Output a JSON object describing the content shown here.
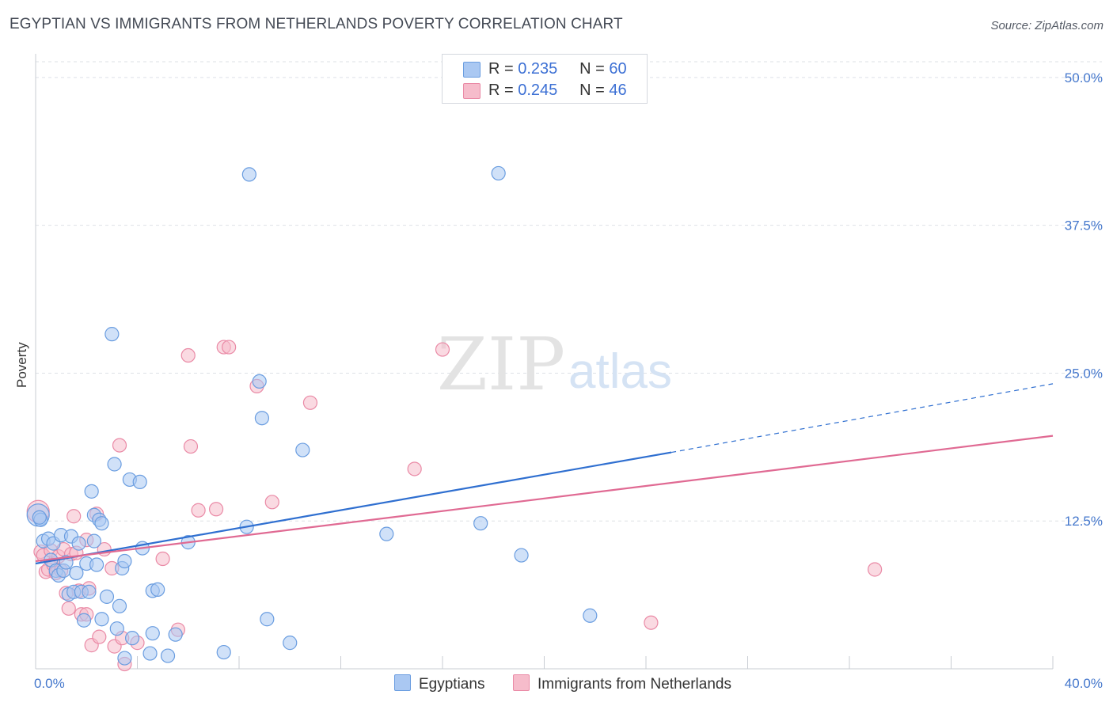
{
  "title": "EGYPTIAN VS IMMIGRANTS FROM NETHERLANDS POVERTY CORRELATION CHART",
  "source": "Source: ZipAtlas.com",
  "watermark": {
    "zip": "ZIP",
    "atlas": "atlas"
  },
  "colors": {
    "blue_fill": "#aac8f2",
    "blue_stroke": "#6a9de0",
    "blue_line": "#2f6fd0",
    "pink_fill": "#f6bccb",
    "pink_stroke": "#ea8aa6",
    "pink_line": "#e06a93",
    "grid": "#dde1e6",
    "axis_text": "#4477cc"
  },
  "legend": {
    "rows": [
      {
        "r_label": "R =",
        "r_value": "0.235",
        "n_label": "N =",
        "n_value": "60"
      },
      {
        "r_label": "R =",
        "r_value": "0.245",
        "n_label": "N =",
        "n_value": "46"
      }
    ]
  },
  "bottom_legend": {
    "series1": "Egyptians",
    "series2": "Immigrants from Netherlands"
  },
  "chart_data": {
    "type": "scatter",
    "xlabel": "",
    "ylabel": "Poverty",
    "xlim": [
      0,
      40
    ],
    "ylim": [
      0,
      52
    ],
    "x_tick_labels": [
      "0.0%",
      "40.0%"
    ],
    "y_ticks": [
      12.5,
      25.0,
      37.5,
      50.0
    ],
    "y_tick_labels": [
      "12.5%",
      "25.0%",
      "37.5%",
      "50.0%"
    ],
    "series": [
      {
        "name": "Egyptians",
        "r": 0.235,
        "n": 60,
        "trend": {
          "x0": 0,
          "y0": 8.9,
          "x1": 25.0,
          "y1": 18.3,
          "dash_to_x": 40,
          "dash_to_y": 24.1
        },
        "points": [
          [
            0.1,
            13.0
          ],
          [
            0.2,
            12.6
          ],
          [
            0.3,
            10.8
          ],
          [
            0.5,
            11.0
          ],
          [
            0.6,
            9.2
          ],
          [
            0.7,
            10.6
          ],
          [
            0.8,
            8.3
          ],
          [
            0.9,
            7.9
          ],
          [
            1.0,
            11.3
          ],
          [
            1.1,
            8.3
          ],
          [
            1.2,
            9.0
          ],
          [
            1.3,
            6.3
          ],
          [
            1.4,
            11.2
          ],
          [
            1.5,
            6.5
          ],
          [
            1.6,
            8.1
          ],
          [
            1.7,
            10.6
          ],
          [
            1.8,
            6.5
          ],
          [
            1.9,
            4.1
          ],
          [
            2.0,
            8.9
          ],
          [
            2.1,
            6.5
          ],
          [
            2.2,
            15.0
          ],
          [
            2.3,
            13.0
          ],
          [
            2.3,
            10.8
          ],
          [
            2.4,
            8.8
          ],
          [
            2.5,
            12.6
          ],
          [
            2.6,
            12.3
          ],
          [
            2.6,
            4.2
          ],
          [
            2.8,
            6.1
          ],
          [
            3.0,
            28.3
          ],
          [
            3.1,
            17.3
          ],
          [
            3.2,
            3.4
          ],
          [
            3.3,
            5.3
          ],
          [
            3.4,
            8.5
          ],
          [
            3.5,
            0.9
          ],
          [
            3.5,
            9.1
          ],
          [
            3.7,
            16.0
          ],
          [
            3.8,
            2.6
          ],
          [
            4.1,
            15.8
          ],
          [
            4.2,
            10.2
          ],
          [
            4.5,
            1.3
          ],
          [
            4.6,
            3.0
          ],
          [
            4.6,
            6.6
          ],
          [
            4.8,
            6.7
          ],
          [
            5.2,
            1.1
          ],
          [
            5.5,
            2.9
          ],
          [
            6.0,
            10.7
          ],
          [
            7.4,
            1.4
          ],
          [
            8.3,
            12.0
          ],
          [
            8.4,
            41.8
          ],
          [
            8.8,
            24.3
          ],
          [
            8.9,
            21.2
          ],
          [
            9.1,
            4.2
          ],
          [
            10.0,
            2.2
          ],
          [
            10.5,
            18.5
          ],
          [
            13.8,
            11.4
          ],
          [
            17.5,
            12.3
          ],
          [
            18.2,
            41.9
          ],
          [
            19.1,
            9.6
          ],
          [
            21.8,
            4.5
          ],
          [
            0.15,
            12.8
          ]
        ]
      },
      {
        "name": "Immigrants from Netherlands",
        "r": 0.245,
        "n": 46,
        "trend": {
          "x0": 0,
          "y0": 9.1,
          "x1": 40,
          "y1": 19.7
        },
        "points": [
          [
            0.1,
            13.3
          ],
          [
            0.2,
            9.9
          ],
          [
            0.3,
            9.6
          ],
          [
            0.4,
            8.2
          ],
          [
            0.5,
            8.4
          ],
          [
            0.6,
            10.0
          ],
          [
            0.7,
            8.8
          ],
          [
            0.8,
            8.1
          ],
          [
            0.9,
            9.5
          ],
          [
            1.0,
            8.3
          ],
          [
            1.1,
            10.1
          ],
          [
            1.2,
            6.4
          ],
          [
            1.3,
            5.1
          ],
          [
            1.4,
            9.7
          ],
          [
            1.5,
            12.9
          ],
          [
            1.6,
            9.8
          ],
          [
            1.7,
            6.6
          ],
          [
            1.8,
            4.6
          ],
          [
            2.0,
            10.9
          ],
          [
            2.0,
            4.6
          ],
          [
            2.1,
            6.8
          ],
          [
            2.2,
            2.0
          ],
          [
            2.4,
            13.1
          ],
          [
            2.5,
            2.7
          ],
          [
            2.7,
            10.1
          ],
          [
            3.0,
            8.5
          ],
          [
            3.1,
            1.9
          ],
          [
            3.3,
            18.9
          ],
          [
            3.4,
            2.6
          ],
          [
            3.5,
            0.4
          ],
          [
            4.0,
            2.2
          ],
          [
            5.0,
            9.3
          ],
          [
            5.6,
            3.3
          ],
          [
            6.0,
            26.5
          ],
          [
            6.1,
            18.8
          ],
          [
            6.4,
            13.4
          ],
          [
            7.1,
            13.5
          ],
          [
            7.4,
            27.2
          ],
          [
            7.6,
            27.2
          ],
          [
            8.7,
            23.9
          ],
          [
            9.3,
            14.1
          ],
          [
            10.8,
            22.5
          ],
          [
            14.9,
            16.9
          ],
          [
            16.0,
            27.0
          ],
          [
            24.2,
            3.9
          ],
          [
            33.0,
            8.4
          ]
        ]
      }
    ]
  }
}
